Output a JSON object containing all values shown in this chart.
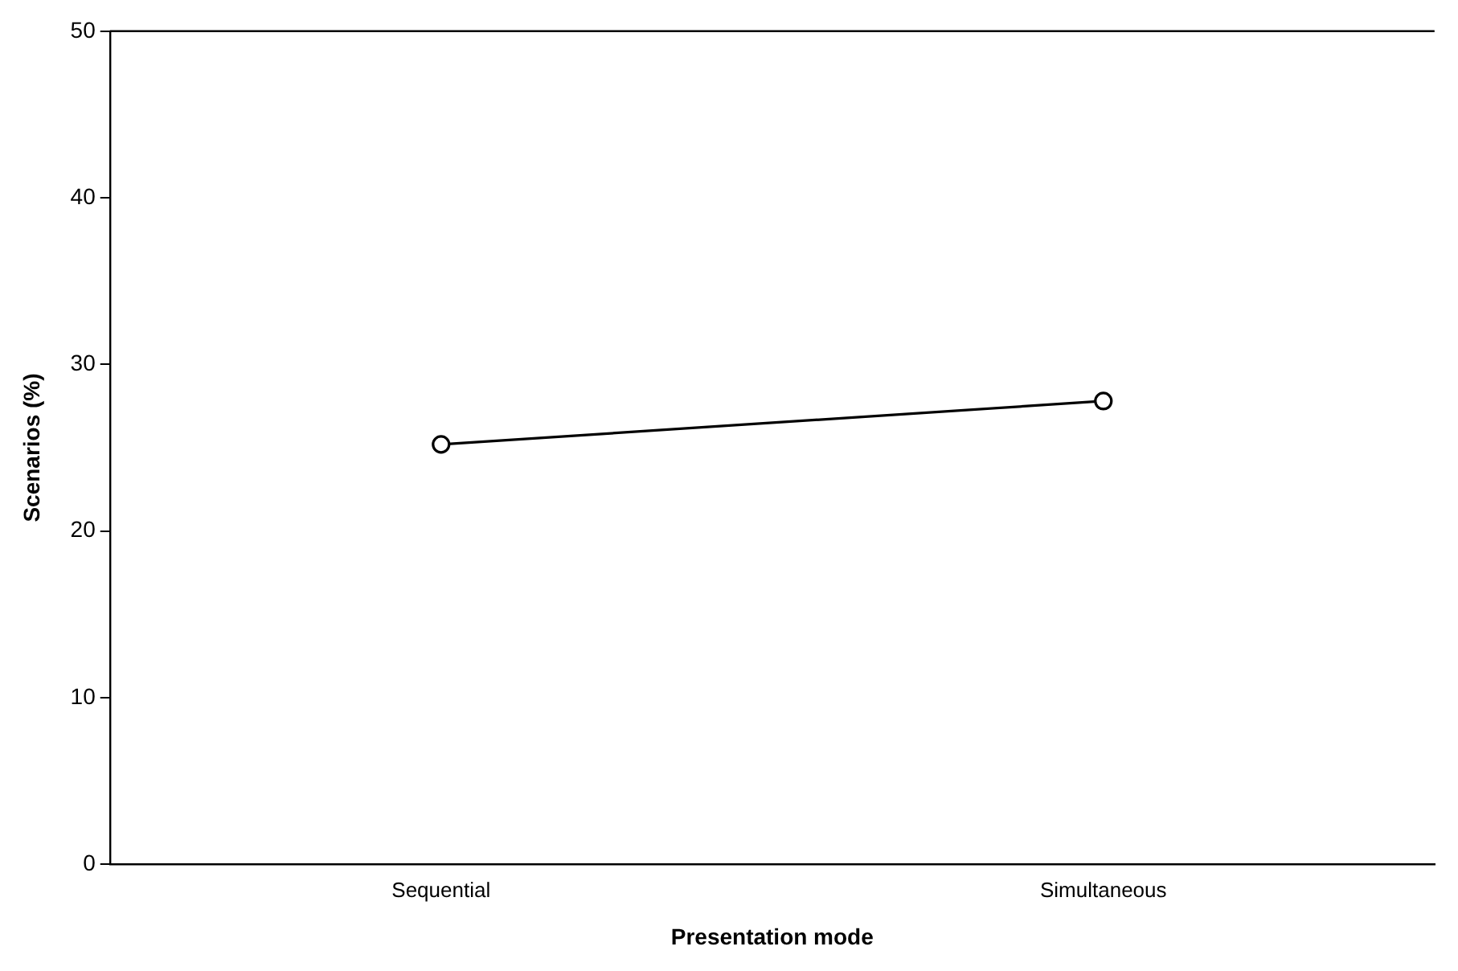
{
  "chart_data": {
    "type": "line",
    "xlabel": "Presentation mode",
    "ylabel": "Scenarios (%)",
    "categories": [
      "Sequential",
      "Simultaneous"
    ],
    "series": [
      {
        "color": "#000000",
        "values": [
          25.2,
          27.8
        ]
      }
    ],
    "ylim": [
      0,
      50
    ],
    "yticks": [
      0,
      10,
      20,
      30,
      40,
      50
    ],
    "grid": false,
    "legend": false,
    "marker": "circle",
    "line_style": "solid"
  }
}
